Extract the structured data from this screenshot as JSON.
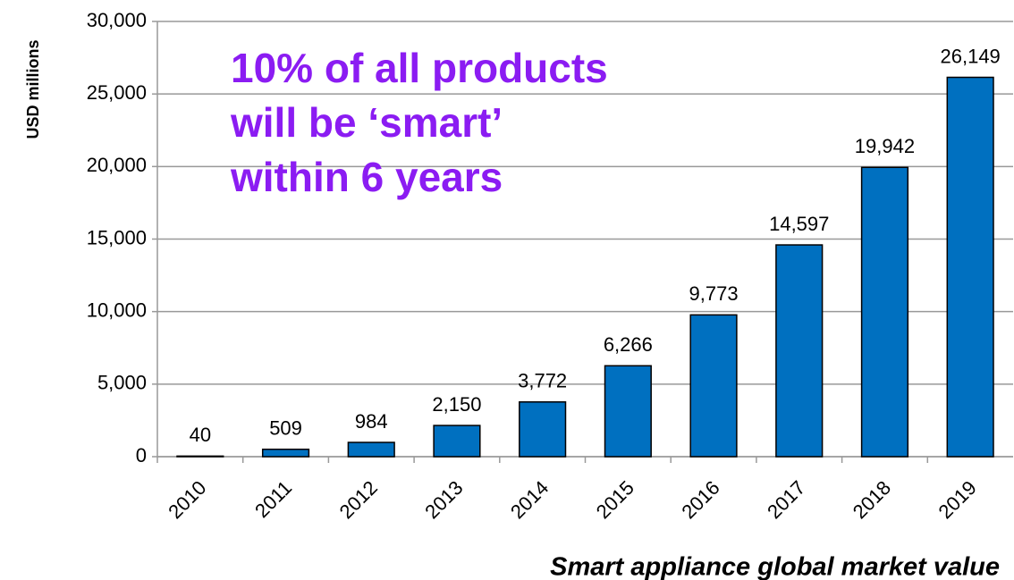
{
  "chart_data": {
    "type": "bar",
    "y_label": "USD millions",
    "x_label": "Smart appliance global market value",
    "annotation": "10% of all products will be ‘smart’ within 6 years",
    "categories": [
      "2010",
      "2011",
      "2012",
      "2013",
      "2014",
      "2015",
      "2016",
      "2017",
      "2018",
      "2019"
    ],
    "values": [
      40,
      509,
      984,
      2150,
      3772,
      6266,
      9773,
      14597,
      19942,
      26149
    ],
    "value_labels": [
      "40",
      "509",
      "984",
      "2,150",
      "3,772",
      "6,266",
      "9,773",
      "14,597",
      "19,942",
      "26,149"
    ],
    "color": "#0070c0",
    "ylim": [
      0,
      30000
    ],
    "yticks": [
      0,
      {
        "value": 5000,
        "label": "5,000"
      },
      {
        "value": 10000,
        "label": "10,000"
      },
      {
        "value": 15000,
        "label": "15,000"
      },
      {
        "value": 20000,
        "label": "20,000"
      },
      {
        "value": 25000,
        "label": "25,000"
      },
      {
        "value": 30000,
        "label": "30,000"
      }
    ],
    "grid": true
  }
}
